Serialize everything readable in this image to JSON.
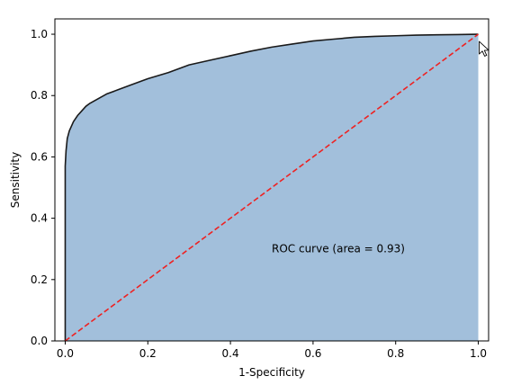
{
  "chart_data": {
    "type": "area",
    "title": "",
    "xlabel": "1-Specificity",
    "ylabel": "Sensitivity",
    "xlim": [
      -0.025,
      1.025
    ],
    "ylim": [
      0.0,
      1.05
    ],
    "xticks": [
      "0.0",
      "0.2",
      "0.4",
      "0.6",
      "0.8",
      "1.0"
    ],
    "yticks": [
      "0.0",
      "0.2",
      "0.4",
      "0.6",
      "0.8",
      "1.0"
    ],
    "grid": false,
    "legend": "none",
    "annotation": {
      "text": "ROC curve (area = 0.93)",
      "x": 0.5,
      "y": 0.3
    },
    "colors": {
      "fill": "#a2bfdb",
      "curve": "#1a1a1a",
      "diagonal": "#ee2222",
      "cursor": "#ffffff"
    },
    "series": [
      {
        "kind": "roc-curve",
        "x": [
          0.0,
          0.0,
          0.002,
          0.005,
          0.01,
          0.015,
          0.02,
          0.03,
          0.04,
          0.05,
          0.06,
          0.08,
          0.1,
          0.13,
          0.16,
          0.2,
          0.25,
          0.3,
          0.35,
          0.4,
          0.45,
          0.5,
          0.55,
          0.6,
          0.65,
          0.7,
          0.75,
          0.8,
          0.85,
          0.9,
          0.95,
          1.0
        ],
        "y": [
          0.0,
          0.57,
          0.62,
          0.66,
          0.685,
          0.7,
          0.715,
          0.735,
          0.75,
          0.765,
          0.775,
          0.79,
          0.805,
          0.82,
          0.835,
          0.855,
          0.875,
          0.9,
          0.915,
          0.93,
          0.945,
          0.958,
          0.968,
          0.978,
          0.984,
          0.99,
          0.993,
          0.995,
          0.997,
          0.998,
          0.999,
          1.0
        ]
      },
      {
        "kind": "diagonal",
        "x": [
          0.0,
          1.0
        ],
        "y": [
          0.0,
          1.0
        ]
      }
    ]
  }
}
